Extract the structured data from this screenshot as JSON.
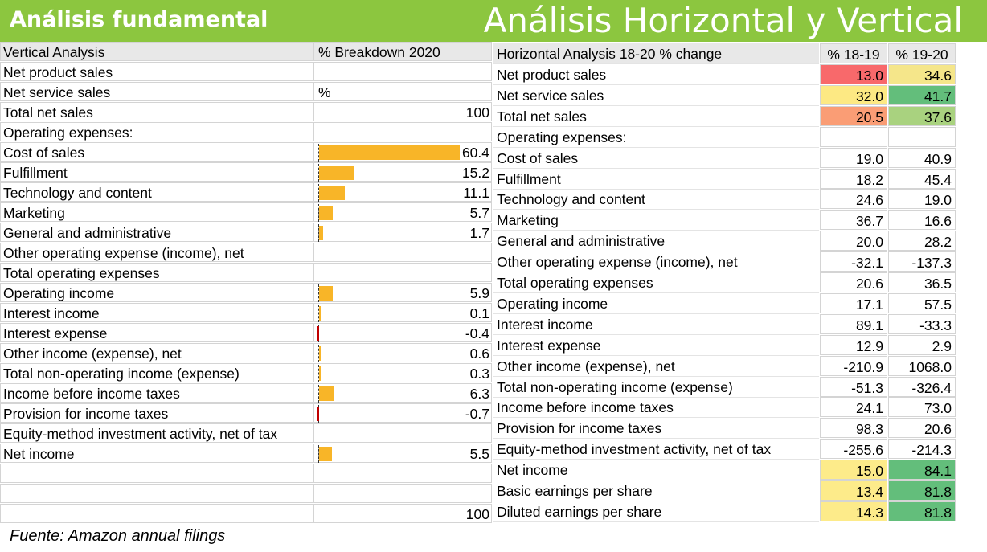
{
  "banner": {
    "left_title": "Análisis fundamental",
    "right_title": "Análisis Horizontal y Vertical",
    "color": "#8cc63f"
  },
  "vertical": {
    "header": {
      "label": "Vertical Analysis",
      "col": "% Breakdown 2020"
    },
    "rows": [
      {
        "label": "Net product sales",
        "value": "",
        "num": null
      },
      {
        "label": "Net service sales",
        "value": "%",
        "num": null,
        "left": true
      },
      {
        "label": "Total net sales",
        "value": "100",
        "num": null
      },
      {
        "label": "Operating expenses:",
        "value": "",
        "num": null
      },
      {
        "label": "Cost of sales",
        "value": "60.4",
        "num": 60.4
      },
      {
        "label": "Fulfillment",
        "value": "15.2",
        "num": 15.2
      },
      {
        "label": "Technology and content",
        "value": "11.1",
        "num": 11.1
      },
      {
        "label": "Marketing",
        "value": "5.7",
        "num": 5.7
      },
      {
        "label": "General and administrative",
        "value": "1.7",
        "num": 1.7
      },
      {
        "label": "Other operating expense (income), net",
        "value": "",
        "num": null
      },
      {
        "label": "Total operating expenses",
        "value": "",
        "num": null
      },
      {
        "label": "Operating income",
        "value": "5.9",
        "num": 5.9
      },
      {
        "label": "Interest income",
        "value": "0.1",
        "num": 0.1
      },
      {
        "label": "Interest expense",
        "value": "-0.4",
        "num": -0.4
      },
      {
        "label": "Other income (expense), net",
        "value": "0.6",
        "num": 0.6
      },
      {
        "label": "Total non-operating income (expense)",
        "value": "0.3",
        "num": 0.3
      },
      {
        "label": "Income before income taxes",
        "value": "6.3",
        "num": 6.3
      },
      {
        "label": "Provision for income taxes",
        "value": "-0.7",
        "num": -0.7
      },
      {
        "label": "Equity-method investment activity, net of tax",
        "value": "",
        "num": null
      },
      {
        "label": "Net income",
        "value": "5.5",
        "num": 5.5
      },
      {
        "label": "",
        "value": "",
        "num": null
      },
      {
        "label": "",
        "value": "",
        "num": null
      },
      {
        "label": "",
        "value": "100",
        "num": null
      }
    ]
  },
  "horizontal": {
    "header": {
      "label": "Horizontal Analysis 18-20 % change",
      "col1": "% 18-19",
      "col2": "% 19-20"
    },
    "rows": [
      {
        "label": "Net product sales",
        "v1": "13.0",
        "v2": "34.6",
        "c1": "#f8696b",
        "c2": "#f5e68a"
      },
      {
        "label": "Net service sales",
        "v1": "32.0",
        "v2": "41.7",
        "c1": "#fde983",
        "c2": "#63be7b"
      },
      {
        "label": "Total net sales",
        "v1": "20.5",
        "v2": "37.6",
        "c1": "#fa9d75",
        "c2": "#a9d27f"
      },
      {
        "label": "Operating expenses:",
        "v1": "",
        "v2": "",
        "c1": "",
        "c2": ""
      },
      {
        "label": "Cost of sales",
        "v1": "19.0",
        "v2": "40.9",
        "c1": "",
        "c2": ""
      },
      {
        "label": "Fulfillment",
        "v1": "18.2",
        "v2": "45.4",
        "c1": "",
        "c2": ""
      },
      {
        "label": "Technology and content",
        "v1": "24.6",
        "v2": "19.0",
        "c1": "",
        "c2": ""
      },
      {
        "label": "Marketing",
        "v1": "36.7",
        "v2": "16.6",
        "c1": "",
        "c2": ""
      },
      {
        "label": "General and administrative",
        "v1": "20.0",
        "v2": "28.2",
        "c1": "",
        "c2": ""
      },
      {
        "label": "Other operating expense (income), net",
        "v1": "-32.1",
        "v2": "-137.3",
        "c1": "",
        "c2": ""
      },
      {
        "label": "Total operating expenses",
        "v1": "20.6",
        "v2": "36.5",
        "c1": "",
        "c2": ""
      },
      {
        "label": "Operating income",
        "v1": "17.1",
        "v2": "57.5",
        "c1": "",
        "c2": ""
      },
      {
        "label": "Interest income",
        "v1": "89.1",
        "v2": "-33.3",
        "c1": "",
        "c2": ""
      },
      {
        "label": "Interest expense",
        "v1": "12.9",
        "v2": "2.9",
        "c1": "",
        "c2": ""
      },
      {
        "label": "Other income (expense), net",
        "v1": "-210.9",
        "v2": "1068.0",
        "c1": "",
        "c2": ""
      },
      {
        "label": "Total non-operating income (expense)",
        "v1": "-51.3",
        "v2": "-326.4",
        "c1": "",
        "c2": ""
      },
      {
        "label": "Income before income taxes",
        "v1": "24.1",
        "v2": "73.0",
        "c1": "",
        "c2": ""
      },
      {
        "label": "Provision for income taxes",
        "v1": "98.3",
        "v2": "20.6",
        "c1": "",
        "c2": ""
      },
      {
        "label": "Equity-method investment activity, net of tax",
        "v1": "-255.6",
        "v2": "-214.3",
        "c1": "",
        "c2": ""
      },
      {
        "label": "Net income",
        "v1": "15.0",
        "v2": "84.1",
        "c1": "#fdeb8a",
        "c2": "#63be7b"
      },
      {
        "label": "Basic earnings per share",
        "v1": "13.4",
        "v2": "81.8",
        "c1": "#fdeb8a",
        "c2": "#63be7b"
      },
      {
        "label": "Diluted earnings per share",
        "v1": "14.3",
        "v2": "81.8",
        "c1": "#fdeb8a",
        "c2": "#63be7b"
      }
    ]
  },
  "source": "Fuente: Amazon annual filings"
}
